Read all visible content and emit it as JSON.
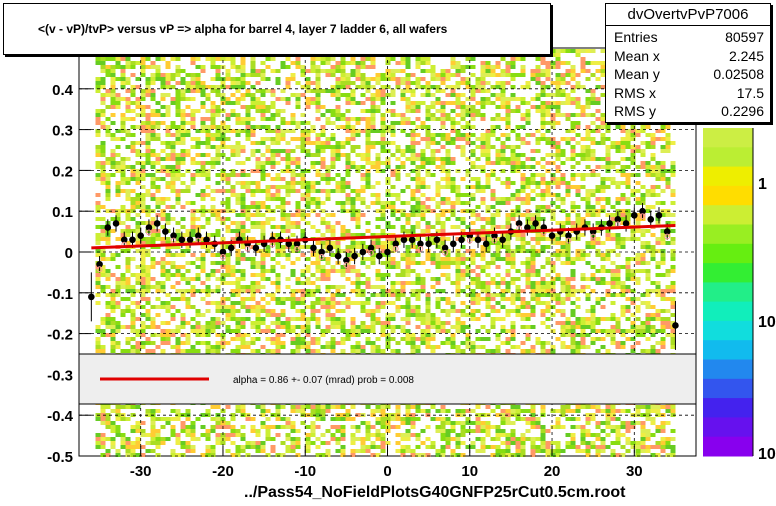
{
  "title": "<(v - vP)/tvP> versus   vP => alpha for barrel 4, layer 7 ladder 6, all wafers",
  "footer": "../Pass54_NoFieldPlotsG40GNFP25rCut0.5cm.root",
  "stats": {
    "name": "dvOvertvPvP7006",
    "rows": [
      {
        "label": "Entries",
        "value": "80597"
      },
      {
        "label": "Mean x",
        "value": "2.245"
      },
      {
        "label": "Mean y",
        "value": "0.02508"
      },
      {
        "label": "RMS x",
        "value": "17.5"
      },
      {
        "label": "RMS y",
        "value": "0.2296"
      }
    ]
  },
  "fit_legend": "alpha =    0.86 +-  0.07 (mrad) prob = 0.008",
  "colors": {
    "fit_line": "#e00000",
    "profile": "#000000",
    "profile_alt": "#ff9999"
  },
  "chart_data": {
    "type": "scatter",
    "xlim": [
      -37.5,
      37.5
    ],
    "ylim": [
      -0.5,
      0.5
    ],
    "x_ticks": [
      -30,
      -20,
      -10,
      0,
      10,
      20,
      30
    ],
    "y_ticks": [
      -0.5,
      -0.4,
      -0.3,
      -0.2,
      -0.1,
      0,
      0.1,
      0.2,
      0.3,
      0.4
    ],
    "y_tick_labels": [
      "-0.5",
      "-0.4",
      "-0.3",
      "-0.2",
      "-0.1",
      "0",
      "0.1",
      "0.2",
      "0.3",
      "0.4"
    ],
    "x_tick_labels": [
      "-30",
      "-20",
      "-10",
      "0",
      "10",
      "20",
      "30"
    ],
    "grid": true,
    "colorbar_labels": [
      "1",
      "10",
      "10"
    ],
    "fit": {
      "x": [
        -36,
        35
      ],
      "y": [
        0.01,
        0.065
      ]
    },
    "profile_x": [
      -36,
      -35,
      -34,
      -33,
      -32,
      -31,
      -30,
      -29,
      -28,
      -27,
      -26,
      -25,
      -24,
      -23,
      -22,
      -21,
      -20,
      -19,
      -18,
      -17,
      -16,
      -15,
      -14,
      -13,
      -12,
      -11,
      -10,
      -9,
      -8,
      -7,
      -6,
      -5,
      -4,
      -3,
      -2,
      -1,
      0,
      1,
      2,
      3,
      4,
      5,
      6,
      7,
      8,
      9,
      10,
      11,
      12,
      13,
      14,
      15,
      16,
      17,
      18,
      19,
      20,
      21,
      22,
      23,
      24,
      25,
      26,
      27,
      28,
      29,
      30,
      31,
      32,
      33,
      34,
      35
    ],
    "profile_y": [
      -0.11,
      -0.03,
      0.06,
      0.07,
      0.03,
      0.03,
      0.04,
      0.06,
      0.07,
      0.05,
      0.04,
      0.03,
      0.03,
      0.04,
      0.03,
      0.02,
      0.0,
      0.01,
      0.03,
      0.02,
      0.01,
      0.02,
      0.03,
      0.03,
      0.02,
      0.02,
      0.03,
      0.01,
      0.0,
      0.01,
      -0.01,
      -0.02,
      -0.01,
      0.0,
      0.01,
      -0.01,
      0.0,
      0.02,
      0.03,
      0.03,
      0.02,
      0.02,
      0.03,
      0.01,
      0.02,
      0.03,
      0.04,
      0.03,
      0.02,
      0.04,
      0.03,
      0.05,
      0.07,
      0.06,
      0.07,
      0.06,
      0.04,
      0.05,
      0.04,
      0.05,
      0.06,
      0.05,
      0.06,
      0.07,
      0.08,
      0.07,
      0.09,
      0.1,
      0.08,
      0.09,
      0.05,
      -0.18
    ]
  }
}
